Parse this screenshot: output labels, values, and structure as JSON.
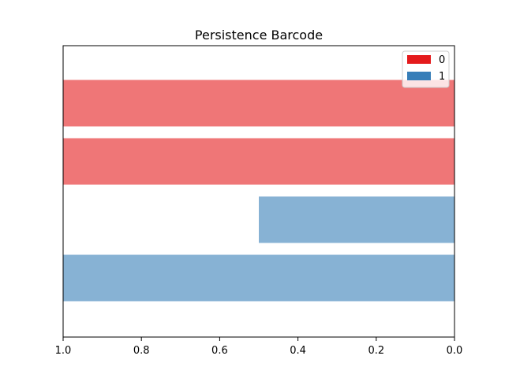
{
  "chart_data": {
    "type": "bar",
    "orientation": "horizontal",
    "title": "Persistence Barcode",
    "xlabel": "",
    "ylabel": "",
    "xlim": [
      1.0,
      0.0
    ],
    "x_ticks": [
      "1.0",
      "0.8",
      "0.6",
      "0.4",
      "0.2",
      "0.0"
    ],
    "grid": false,
    "legend": {
      "placement": "top-right",
      "entries": [
        {
          "label": "0",
          "color": "#e41a1c"
        },
        {
          "label": "1",
          "color": "#377eb8"
        }
      ]
    },
    "bars": [
      {
        "dimension": "0",
        "start": 0.0,
        "end": 1.0,
        "color": "#e41a1c",
        "alpha": 0.6
      },
      {
        "dimension": "0",
        "start": 0.0,
        "end": 1.0,
        "color": "#e41a1c",
        "alpha": 0.6
      },
      {
        "dimension": "1",
        "start": 0.0,
        "end": 0.5,
        "color": "#377eb8",
        "alpha": 0.6
      },
      {
        "dimension": "1",
        "start": 0.0,
        "end": 1.0,
        "color": "#377eb8",
        "alpha": 0.6
      }
    ]
  }
}
